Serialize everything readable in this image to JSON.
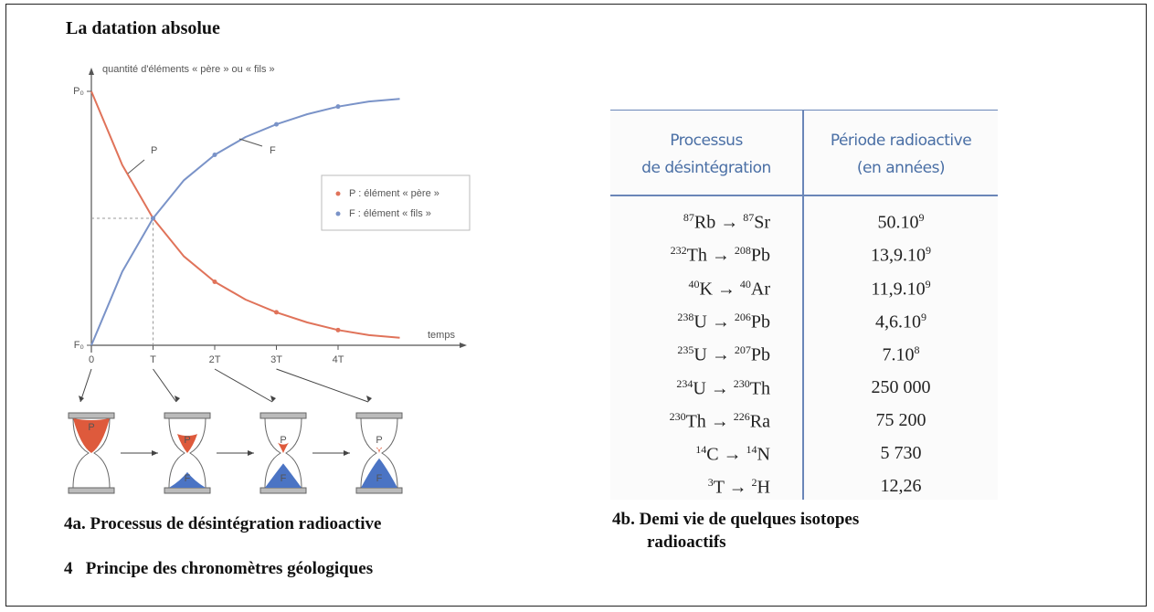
{
  "title": "La datation absolue",
  "figure_a": {
    "chart_data": {
      "type": "line",
      "y_label": "quantité d'éléments « père » ou « fils »",
      "x_label": "temps",
      "x": [
        0,
        0.5,
        1,
        1.5,
        2,
        2.5,
        3,
        3.5,
        4,
        4.5,
        5
      ],
      "series": [
        {
          "name": "P : élément « père »",
          "label": "P",
          "color": "#e0735a",
          "values": [
            1,
            0.71,
            0.5,
            0.35,
            0.25,
            0.18,
            0.13,
            0.09,
            0.06,
            0.04,
            0.03
          ]
        },
        {
          "name": "F : élément « fils »",
          "label": "F",
          "color": "#7a93c8",
          "values": [
            0,
            0.29,
            0.5,
            0.65,
            0.75,
            0.82,
            0.87,
            0.91,
            0.94,
            0.96,
            0.97
          ]
        }
      ],
      "xlim": [
        0,
        6
      ],
      "ylim": [
        0,
        1
      ],
      "xticks": [
        0,
        {
          "value": 1,
          "label": "T"
        },
        {
          "value": 2,
          "label": "2T"
        },
        {
          "value": 3,
          "label": "3T"
        },
        {
          "value": 4,
          "label": "4T"
        }
      ],
      "yticks": [
        {
          "value": 0,
          "label": "F₀"
        },
        {
          "value": 1,
          "label": "P₀"
        }
      ],
      "legend": "right"
    },
    "hourglasses": [
      {
        "top": "P"
      },
      {
        "top": "P",
        "bottom": "F"
      },
      {
        "top": "P",
        "bottom": "F"
      },
      {
        "top": "P",
        "bottom": "F"
      }
    ],
    "caption": "4a. Processus de désintégration radioactive"
  },
  "figure_b": {
    "table": {
      "header": [
        [
          "Processus",
          "de désintégration"
        ],
        [
          "Période radioactive",
          "(en années)"
        ]
      ],
      "rows": [
        {
          "parent": {
            "mass": "87",
            "symbol": "Rb"
          },
          "daughter": {
            "mass": "87",
            "symbol": "Sr"
          },
          "period": "50.10",
          "exponent": "9"
        },
        {
          "parent": {
            "mass": "232",
            "symbol": "Th"
          },
          "daughter": {
            "mass": "208",
            "symbol": "Pb"
          },
          "period": "13,9.10",
          "exponent": "9"
        },
        {
          "parent": {
            "mass": "40",
            "symbol": "K"
          },
          "daughter": {
            "mass": "40",
            "symbol": "Ar"
          },
          "period": "11,9.10",
          "exponent": "9"
        },
        {
          "parent": {
            "mass": "238",
            "symbol": "U"
          },
          "daughter": {
            "mass": "206",
            "symbol": "Pb"
          },
          "period": "4,6.10",
          "exponent": "9"
        },
        {
          "parent": {
            "mass": "235",
            "symbol": "U"
          },
          "daughter": {
            "mass": "207",
            "symbol": "Pb"
          },
          "period": "7.10",
          "exponent": "8"
        },
        {
          "parent": {
            "mass": "234",
            "symbol": "U"
          },
          "daughter": {
            "mass": "230",
            "symbol": "Th"
          },
          "period": "250 000"
        },
        {
          "parent": {
            "mass": "230",
            "symbol": "Th"
          },
          "daughter": {
            "mass": "226",
            "symbol": "Ra"
          },
          "period": "75 200"
        },
        {
          "parent": {
            "mass": "14",
            "symbol": "C"
          },
          "daughter": {
            "mass": "14",
            "symbol": "N"
          },
          "period": "5 730"
        },
        {
          "parent": {
            "mass": "3",
            "symbol": "T"
          },
          "daughter": {
            "mass": "2",
            "symbol": "H"
          },
          "period": "12,26"
        }
      ]
    },
    "caption": [
      "4b. Demi vie de quelques isotopes",
      "radioactifs"
    ]
  },
  "footer": "4   Principe des chronomètres géologiques"
}
